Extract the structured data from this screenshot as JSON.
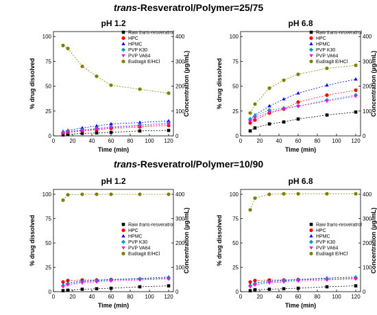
{
  "rows": [
    {
      "title_prefix": "trans-",
      "title_rest": "Resveratrol/Polymer=25/75"
    },
    {
      "title_prefix": "trans-",
      "title_rest": "Resveratrol/Polymer=10/90"
    }
  ],
  "chart_data": [
    {
      "type": "scatter",
      "title": "pH 1.2",
      "xlabel": "Time (min)",
      "ylabel_left": "% drug dissolved",
      "ylabel_right": "Concentration (µg/mL)",
      "xlim": [
        0,
        125
      ],
      "xticks": [
        0,
        20,
        40,
        60,
        80,
        100,
        120
      ],
      "ylim": [
        0,
        105
      ],
      "yticks": [
        0,
        25,
        50,
        75,
        100
      ],
      "ylim_right": [
        0,
        420
      ],
      "yticks_right": [
        0,
        100,
        200,
        300,
        400
      ],
      "legend_position": "top-right",
      "x": [
        10,
        15,
        30,
        45,
        60,
        90,
        120
      ],
      "series": [
        {
          "name": "Raw trans-resveratrol",
          "color": "#000000",
          "marker": "square",
          "values": [
            1,
            1.5,
            2.5,
            3,
            3.5,
            5,
            5.5
          ]
        },
        {
          "name": "HPC",
          "color": "#ff0000",
          "marker": "circle",
          "values": [
            3,
            3.5,
            5,
            6,
            7.5,
            9,
            10.5
          ]
        },
        {
          "name": "HPMC",
          "color": "#0000ff",
          "marker": "triangle",
          "values": [
            4.5,
            5.5,
            8,
            10,
            12,
            13.5,
            15
          ]
        },
        {
          "name": "PVP K30",
          "color": "#00a0a0",
          "marker": "diamond",
          "values": [
            3.5,
            4.5,
            6,
            7.5,
            9,
            11,
            13
          ]
        },
        {
          "name": "PVP VA64",
          "color": "#ff00ff",
          "marker": "down-triangle",
          "values": [
            3,
            4,
            5.5,
            7,
            8.5,
            10,
            12
          ]
        },
        {
          "name": "Eudragit E/HCl",
          "color": "#808000",
          "marker": "circle",
          "values": [
            91,
            88,
            70,
            60,
            51,
            47,
            43
          ]
        }
      ]
    },
    {
      "type": "scatter",
      "title": "pH 6.8",
      "xlabel": "Time (min)",
      "ylabel_left": "% drug dissolved",
      "ylabel_right": "Concentration (µg/mL)",
      "xlim": [
        0,
        125
      ],
      "xticks": [
        0,
        20,
        40,
        60,
        80,
        100,
        120
      ],
      "ylim": [
        0,
        105
      ],
      "yticks": [
        0,
        25,
        50,
        75,
        100
      ],
      "ylim_right": [
        0,
        420
      ],
      "yticks_right": [
        0,
        100,
        200,
        300,
        400
      ],
      "legend_position": "top-left",
      "x": [
        10,
        15,
        30,
        45,
        60,
        90,
        120
      ],
      "series": [
        {
          "name": "Raw trans-resveratrol",
          "color": "#000000",
          "marker": "square",
          "values": [
            5,
            8,
            12,
            14,
            17,
            21,
            24
          ]
        },
        {
          "name": "HPC",
          "color": "#ff0000",
          "marker": "circle",
          "values": [
            13,
            16,
            23,
            27,
            34,
            41,
            46
          ]
        },
        {
          "name": "HPMC",
          "color": "#0000ff",
          "marker": "triangle",
          "values": [
            16,
            21,
            30,
            37,
            43,
            51,
            57
          ]
        },
        {
          "name": "PVP K30",
          "color": "#00a0a0",
          "marker": "diamond",
          "values": [
            17,
            20,
            26,
            28,
            30,
            36,
            41
          ]
        },
        {
          "name": "PVP VA64",
          "color": "#ff00ff",
          "marker": "down-triangle",
          "values": [
            15,
            18,
            24,
            27,
            30,
            35,
            40
          ]
        },
        {
          "name": "Eudragit E/HCl",
          "color": "#808000",
          "marker": "circle",
          "values": [
            23,
            32,
            48,
            56,
            62,
            68,
            71
          ]
        }
      ]
    },
    {
      "type": "scatter",
      "title": "pH 1.2",
      "xlabel": "Time (min)",
      "ylabel_left": "% drug dissolved",
      "ylabel_right": "Concentration (µg/mL)",
      "xlim": [
        0,
        125
      ],
      "xticks": [
        0,
        20,
        40,
        60,
        80,
        100,
        120
      ],
      "ylim": [
        0,
        105
      ],
      "yticks": [
        0,
        25,
        50,
        75,
        100
      ],
      "ylim_right": [
        0,
        420
      ],
      "yticks_right": [
        0,
        100,
        200,
        300,
        400
      ],
      "legend_position": "center-right",
      "x": [
        10,
        15,
        30,
        45,
        60,
        90,
        120
      ],
      "series": [
        {
          "name": "Raw trans-resveratrol",
          "color": "#000000",
          "marker": "square",
          "values": [
            1,
            1.5,
            2.5,
            3,
            3.5,
            5,
            6
          ]
        },
        {
          "name": "HPC",
          "color": "#ff0000",
          "marker": "circle",
          "values": [
            10,
            11.5,
            12,
            12,
            12.5,
            13,
            14
          ]
        },
        {
          "name": "HPMC",
          "color": "#0000ff",
          "marker": "triangle",
          "values": [
            7,
            9,
            11,
            11.5,
            12.5,
            13.5,
            15
          ]
        },
        {
          "name": "PVP K30",
          "color": "#00a0a0",
          "marker": "diamond",
          "values": [
            6,
            8,
            10,
            11,
            12,
            13,
            14
          ]
        },
        {
          "name": "PVP VA64",
          "color": "#ff00ff",
          "marker": "down-triangle",
          "values": [
            5,
            7,
            9,
            10,
            11,
            12,
            13
          ]
        },
        {
          "name": "Eudragit E/HCl",
          "color": "#808000",
          "marker": "circle",
          "values": [
            94,
            99.5,
            100,
            100,
            100,
            100,
            100
          ]
        }
      ]
    },
    {
      "type": "scatter",
      "title": "pH 6.8",
      "xlabel": "Time (min)",
      "ylabel_left": "% drug dissolved",
      "ylabel_right": "Concentration (µg/mL)",
      "xlim": [
        0,
        125
      ],
      "xticks": [
        0,
        20,
        40,
        60,
        80,
        100,
        120
      ],
      "ylim": [
        0,
        105
      ],
      "yticks": [
        0,
        25,
        50,
        75,
        100
      ],
      "ylim_right": [
        0,
        420
      ],
      "yticks_right": [
        0,
        100,
        200,
        300,
        400
      ],
      "legend_position": "center-right",
      "x": [
        10,
        15,
        30,
        45,
        60,
        90,
        120
      ],
      "series": [
        {
          "name": "Raw trans-resveratrol",
          "color": "#000000",
          "marker": "square",
          "values": [
            1,
            2,
            2.5,
            3,
            3.5,
            5,
            6
          ]
        },
        {
          "name": "HPC",
          "color": "#ff0000",
          "marker": "circle",
          "values": [
            10,
            11.5,
            12,
            12,
            12.5,
            13,
            14
          ]
        },
        {
          "name": "HPMC",
          "color": "#0000ff",
          "marker": "triangle",
          "values": [
            7,
            9,
            11,
            11.5,
            12.5,
            14,
            15
          ]
        },
        {
          "name": "PVP K30",
          "color": "#00a0a0",
          "marker": "diamond",
          "values": [
            6,
            8,
            10,
            11,
            12,
            13,
            14
          ]
        },
        {
          "name": "PVP VA64",
          "color": "#ff00ff",
          "marker": "down-triangle",
          "values": [
            5,
            7,
            9,
            10,
            11,
            12,
            13
          ]
        },
        {
          "name": "Eudragit E/HCl",
          "color": "#808000",
          "marker": "circle",
          "values": [
            84,
            96,
            100,
            100.5,
            100.5,
            100.5,
            100.5
          ]
        }
      ]
    }
  ]
}
